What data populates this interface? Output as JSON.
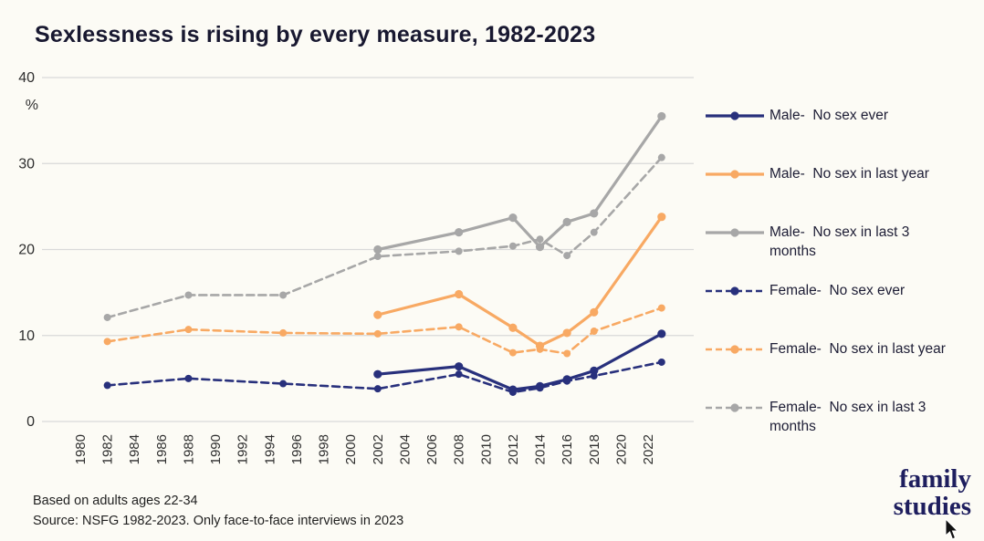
{
  "title": "Sexlessness is rising by every measure, 1982-2023",
  "notes": {
    "line1": "Based on adults ages 22-34",
    "line2": "Source: NSFG 1982-2023. Only face-to-face interviews in 2023"
  },
  "logo": {
    "line1": "family",
    "line2": "studies"
  },
  "colors": {
    "navy": "#28307c",
    "orange": "#f8a963",
    "gray": "#a7a7a7",
    "gridline": "#d9d9d9",
    "background": "#fcfbf5"
  },
  "chart_data": {
    "type": "line",
    "title": "Sexlessness is rising by every measure, 1982-2023",
    "xlabel": "",
    "ylabel": "%",
    "ylim": [
      0,
      40
    ],
    "yticks": [
      0,
      10,
      20,
      30,
      40
    ],
    "x_tick_years": [
      "1980",
      "1982",
      "1984",
      "1986",
      "1988",
      "1990",
      "1992",
      "1994",
      "1996",
      "1998",
      "2000",
      "2002",
      "2004",
      "2006",
      "2008",
      "2010",
      "2012",
      "2014",
      "2016",
      "2018",
      "2020",
      "2022"
    ],
    "grid": true,
    "legend_position": "right",
    "series": [
      {
        "name": "Male-  No sex ever",
        "color": "#28307c",
        "dashed": false,
        "points": [
          [
            2002,
            5.5
          ],
          [
            2008,
            6.4
          ],
          [
            2012,
            3.7
          ],
          [
            2014,
            4.1
          ],
          [
            2016,
            4.9
          ],
          [
            2018,
            5.9
          ],
          [
            2023,
            10.2
          ]
        ]
      },
      {
        "name": "Male-  No sex in last year",
        "color": "#f8a963",
        "dashed": false,
        "points": [
          [
            2002,
            12.4
          ],
          [
            2008,
            14.8
          ],
          [
            2012,
            10.9
          ],
          [
            2014,
            8.8
          ],
          [
            2016,
            10.3
          ],
          [
            2018,
            12.7
          ],
          [
            2023,
            23.8
          ]
        ]
      },
      {
        "name": "Male-  No sex in last 3 months",
        "color": "#a7a7a7",
        "dashed": false,
        "points": [
          [
            2002,
            20.0
          ],
          [
            2008,
            22.0
          ],
          [
            2012,
            23.7
          ],
          [
            2014,
            20.3
          ],
          [
            2016,
            23.2
          ],
          [
            2018,
            24.2
          ],
          [
            2023,
            35.5
          ]
        ]
      },
      {
        "name": "Female-  No sex ever",
        "color": "#28307c",
        "dashed": true,
        "points": [
          [
            1982,
            4.2
          ],
          [
            1988,
            5.0
          ],
          [
            1995,
            4.4
          ],
          [
            2002,
            3.8
          ],
          [
            2008,
            5.5
          ],
          [
            2012,
            3.4
          ],
          [
            2014,
            3.9
          ],
          [
            2016,
            4.7
          ],
          [
            2018,
            5.3
          ],
          [
            2023,
            6.9
          ]
        ]
      },
      {
        "name": "Female-  No sex in last year",
        "color": "#f8a963",
        "dashed": true,
        "points": [
          [
            1982,
            9.3
          ],
          [
            1988,
            10.7
          ],
          [
            1995,
            10.3
          ],
          [
            2002,
            10.2
          ],
          [
            2008,
            11.0
          ],
          [
            2012,
            8.0
          ],
          [
            2014,
            8.4
          ],
          [
            2016,
            7.9
          ],
          [
            2018,
            10.5
          ],
          [
            2023,
            13.2
          ]
        ]
      },
      {
        "name": "Female-  No sex in last 3 months",
        "color": "#a7a7a7",
        "dashed": true,
        "points": [
          [
            1982,
            12.1
          ],
          [
            1988,
            14.7
          ],
          [
            1995,
            14.7
          ],
          [
            2002,
            19.2
          ],
          [
            2008,
            19.8
          ],
          [
            2012,
            20.4
          ],
          [
            2014,
            21.2
          ],
          [
            2016,
            19.3
          ],
          [
            2018,
            22.0
          ],
          [
            2023,
            30.7
          ]
        ]
      }
    ]
  }
}
